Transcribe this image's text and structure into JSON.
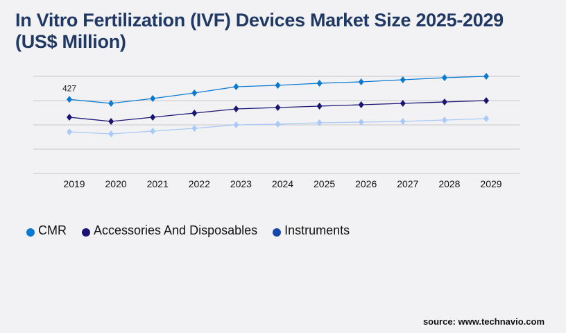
{
  "title": "In Vitro Fertilization (IVF) Devices Market Size 2025-2029 (US$ Million)",
  "source": "source: www.technavio.com",
  "chart_data": {
    "type": "line",
    "title": "In Vitro Fertilization (IVF) Devices Market Size 2025-2029 (US$ Million)",
    "categories": [
      "2019",
      "2020",
      "2021",
      "2022",
      "2023",
      "2024",
      "2025",
      "2026",
      "2027",
      "2028",
      "2029"
    ],
    "series": [
      {
        "name": "CMR",
        "color": "#0a7ad1",
        "values": [
          427,
          404,
          432,
          464,
          500,
          508,
          520,
          528,
          540,
          552,
          560
        ]
      },
      {
        "name": "Accessories And Disposables",
        "color": "#1a1573",
        "values": [
          324,
          300,
          324,
          348,
          372,
          380,
          388,
          396,
          404,
          412,
          420
        ]
      },
      {
        "name": "Instruments",
        "color": "#a9c9f7",
        "legend_color": "#1747a8",
        "values": [
          240,
          228,
          244,
          260,
          280,
          284,
          292,
          296,
          300,
          308,
          316
        ]
      }
    ],
    "annotations": [
      {
        "series": "CMR",
        "category": "2019",
        "label": "427"
      }
    ],
    "ylim": [
      0,
      560
    ],
    "grid": true,
    "yaxis_labels_shown": false,
    "legend": "bottom-left"
  }
}
